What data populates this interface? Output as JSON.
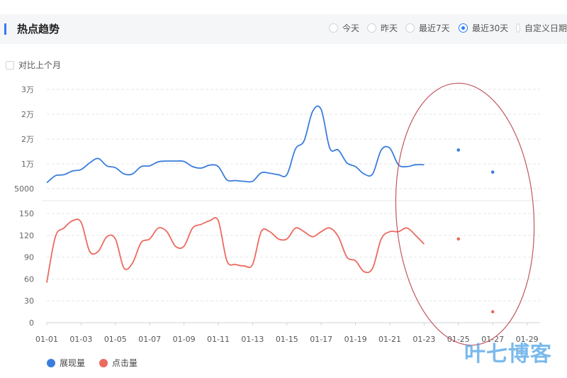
{
  "header": {
    "title": "热点趋势"
  },
  "date_range": {
    "options": [
      {
        "label": "今天",
        "selected": false
      },
      {
        "label": "昨天",
        "selected": false
      },
      {
        "label": "最近7天",
        "selected": false
      },
      {
        "label": "最近30天",
        "selected": true
      },
      {
        "label": "自定义日期",
        "selected": false
      }
    ]
  },
  "compare": {
    "label": "对比上个月",
    "checked": false
  },
  "colors": {
    "accent": "#2f7cf6",
    "impressions": "#3b7ddd",
    "clicks": "#ec6a5e",
    "annotation": "#c0565e"
  },
  "chart_data": [
    {
      "type": "line",
      "title": "",
      "yticks": [
        "5000",
        "1万",
        "2万",
        "2万",
        "3万"
      ],
      "ylim": [
        4000,
        31000
      ],
      "series": [
        {
          "name": "展现量",
          "color": "#3b7ddd",
          "x": [
            1,
            1.5,
            2,
            2.5,
            3,
            3.5,
            4,
            4.5,
            5,
            5.5,
            6,
            6.5,
            7,
            7.5,
            8,
            8.5,
            9,
            9.5,
            10,
            10.5,
            11,
            11.5,
            12,
            12.5,
            13,
            13.5,
            14,
            14.5,
            15,
            15.5,
            16,
            16.5,
            17,
            17.5,
            18,
            18.5,
            19,
            19.5,
            20,
            20.5,
            21,
            21.5,
            22,
            22.5,
            23
          ],
          "values": [
            5600,
            7500,
            7800,
            8800,
            9200,
            11000,
            12200,
            10200,
            9700,
            8000,
            8000,
            10000,
            10200,
            11300,
            11500,
            11500,
            11400,
            10000,
            9600,
            10400,
            10000,
            6400,
            6200,
            6000,
            6000,
            8300,
            8200,
            7800,
            7800,
            14800,
            17000,
            25000,
            25500,
            15000,
            14500,
            11000,
            10000,
            8000,
            8000,
            14500,
            15000,
            10500,
            10000,
            10500,
            10500
          ],
          "forecast": [
            {
              "x": 25,
              "y": 14500
            },
            {
              "x": 27,
              "y": 8500
            }
          ]
        }
      ]
    },
    {
      "type": "line",
      "title": "",
      "xticks": [
        "01-01",
        "01-03",
        "01-05",
        "01-07",
        "01-09",
        "01-11",
        "01-13",
        "01-15",
        "01-17",
        "01-19",
        "01-21",
        "01-23",
        "01-25",
        "01-27",
        "01-29"
      ],
      "yticks": [
        "0",
        "30",
        "60",
        "90",
        "120",
        "150"
      ],
      "ylim": [
        0,
        150
      ],
      "series": [
        {
          "name": "点击量",
          "color": "#ec6a5e",
          "x": [
            1,
            1.5,
            2,
            2.5,
            3,
            3.5,
            4,
            4.5,
            5,
            5.5,
            6,
            6.5,
            7,
            7.5,
            8,
            8.5,
            9,
            9.5,
            10,
            10.5,
            11,
            11.5,
            12,
            12.5,
            13,
            13.5,
            14,
            14.5,
            15,
            15.5,
            16,
            16.5,
            17,
            17.5,
            18,
            18.5,
            19,
            19.5,
            20,
            20.5,
            21,
            21.5,
            22,
            22.5,
            23
          ],
          "values": [
            55,
            118,
            130,
            140,
            138,
            98,
            98,
            118,
            115,
            75,
            82,
            110,
            115,
            130,
            125,
            105,
            105,
            130,
            135,
            140,
            140,
            85,
            80,
            78,
            80,
            125,
            125,
            115,
            115,
            130,
            125,
            118,
            125,
            130,
            118,
            90,
            85,
            70,
            75,
            115,
            125,
            125,
            130,
            120,
            108
          ],
          "forecast": [
            {
              "x": 25,
              "y": 115
            },
            {
              "x": 27,
              "y": 15
            }
          ]
        }
      ]
    }
  ],
  "legend": [
    {
      "label": "展现量",
      "color": "#3b7ddd"
    },
    {
      "label": "点击量",
      "color": "#ec6a5e"
    }
  ],
  "watermark": "叶七博客"
}
